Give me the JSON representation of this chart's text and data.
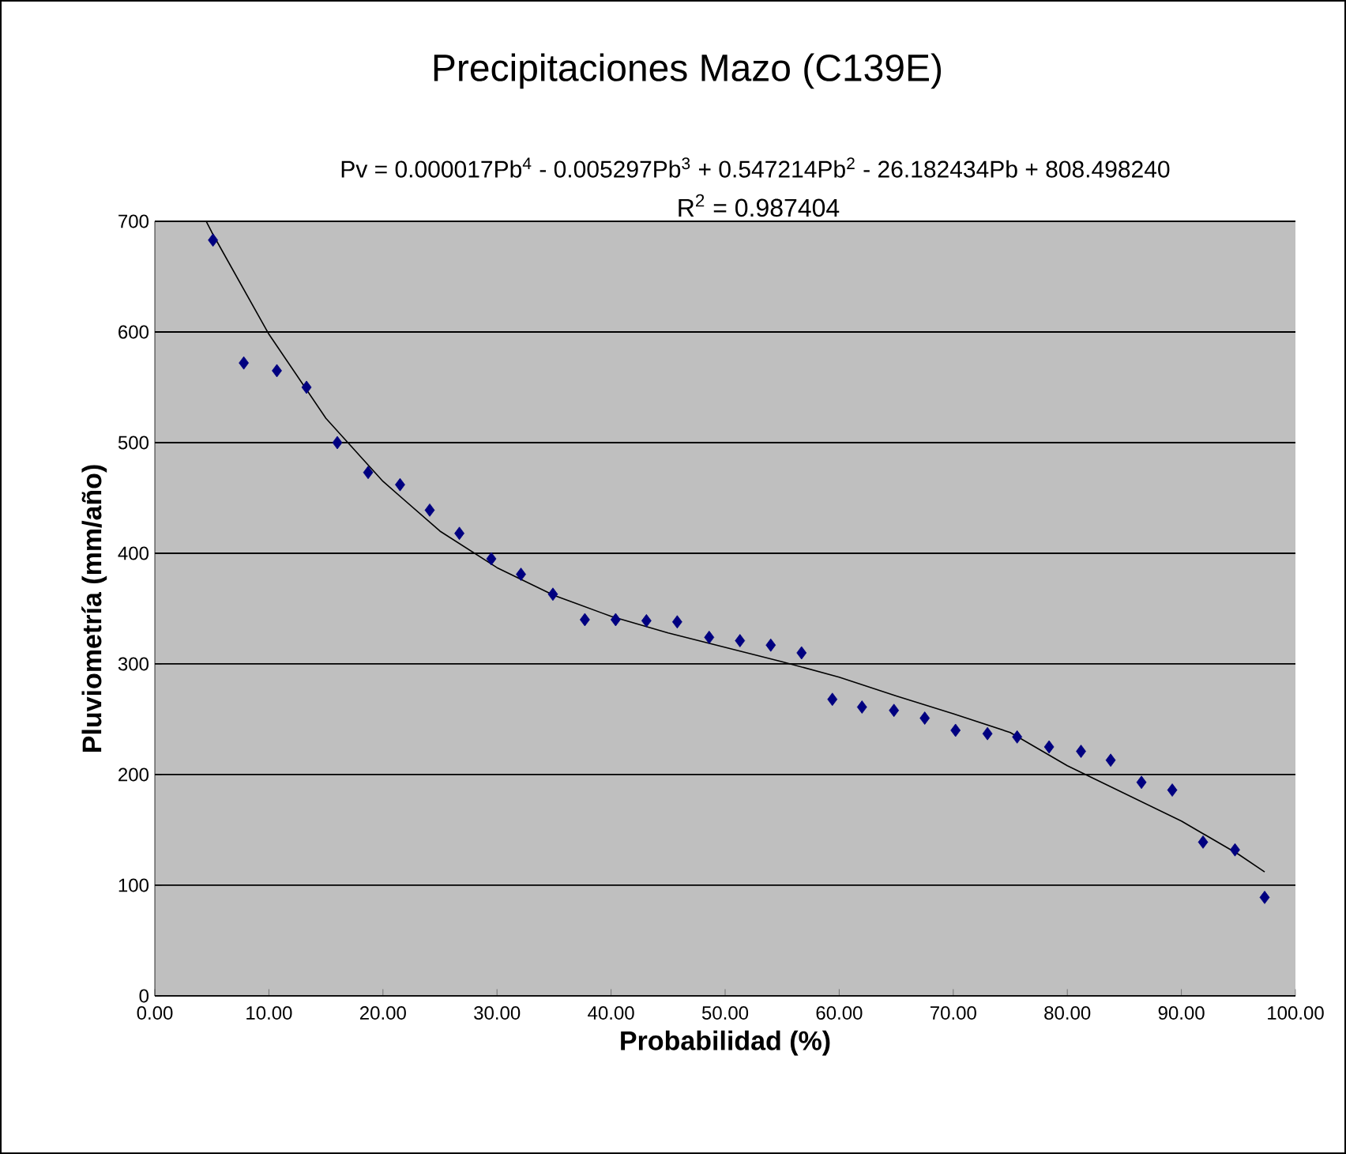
{
  "chart_data": {
    "type": "scatter",
    "title": "Precipitaciones Mazo (C139E)",
    "annotations": [
      "Pv = 0.000017Pb$^{4}$ - 0.005297Pb$^{3}$ + 0.547214Pb$^{2}$ - 26.182434Pb + 808.498240",
      "R$^{2}$ = 0.987404"
    ],
    "xlabel": "Probabilidad (%)",
    "ylabel": "Pluviometría (mm/año)",
    "xlim": [
      0,
      100
    ],
    "ylim": [
      0,
      700
    ],
    "xticks": [
      {
        "value": 0,
        "label": "0.00"
      },
      {
        "value": 10,
        "label": "10.00"
      },
      {
        "value": 20,
        "label": "20.00"
      },
      {
        "value": 30,
        "label": "30.00"
      },
      {
        "value": 40,
        "label": "40.00"
      },
      {
        "value": 50,
        "label": "50.00"
      },
      {
        "value": 60,
        "label": "60.00"
      },
      {
        "value": 70,
        "label": "70.00"
      },
      {
        "value": 80,
        "label": "80.00"
      },
      {
        "value": 90,
        "label": "90.00"
      },
      {
        "value": 100,
        "label": "100.00"
      }
    ],
    "yticks": [
      0,
      100,
      200,
      300,
      400,
      500,
      600,
      700
    ],
    "grid": "y",
    "legend": false,
    "marker": "diamond",
    "series": [
      {
        "color": "#000080",
        "x": [
          5.1,
          7.8,
          10.7,
          13.3,
          16.0,
          18.7,
          21.5,
          24.1,
          26.7,
          29.5,
          32.1,
          34.9,
          37.7,
          40.4,
          43.1,
          45.8,
          48.6,
          51.3,
          54.0,
          56.7,
          59.4,
          62.0,
          64.8,
          67.5,
          70.2,
          73.0,
          75.6,
          78.4,
          81.2,
          83.8,
          86.5,
          89.2,
          91.9,
          94.7,
          97.3
        ],
        "values": [
          683,
          572,
          565,
          550,
          500,
          473,
          462,
          439,
          418,
          395,
          381,
          363,
          340,
          340,
          339,
          338,
          324,
          321,
          317,
          310,
          268,
          261,
          258,
          251,
          240,
          237,
          234,
          225,
          221,
          213,
          193,
          186,
          139,
          132,
          89
        ]
      },
      {
        "type": "line",
        "color": "#000000",
        "marker": "none",
        "line_style": "solid",
        "x": [
          4.5,
          5,
          10,
          15,
          20,
          25,
          30,
          35,
          40,
          45,
          50,
          55,
          60,
          65,
          70,
          75,
          80,
          85,
          90,
          95,
          97.3
        ],
        "values": [
          700,
          690,
          598,
          522,
          465,
          420,
          387,
          362,
          343,
          328,
          315,
          302,
          288,
          271,
          255,
          238,
          208,
          183,
          158,
          128,
          112
        ]
      }
    ]
  }
}
